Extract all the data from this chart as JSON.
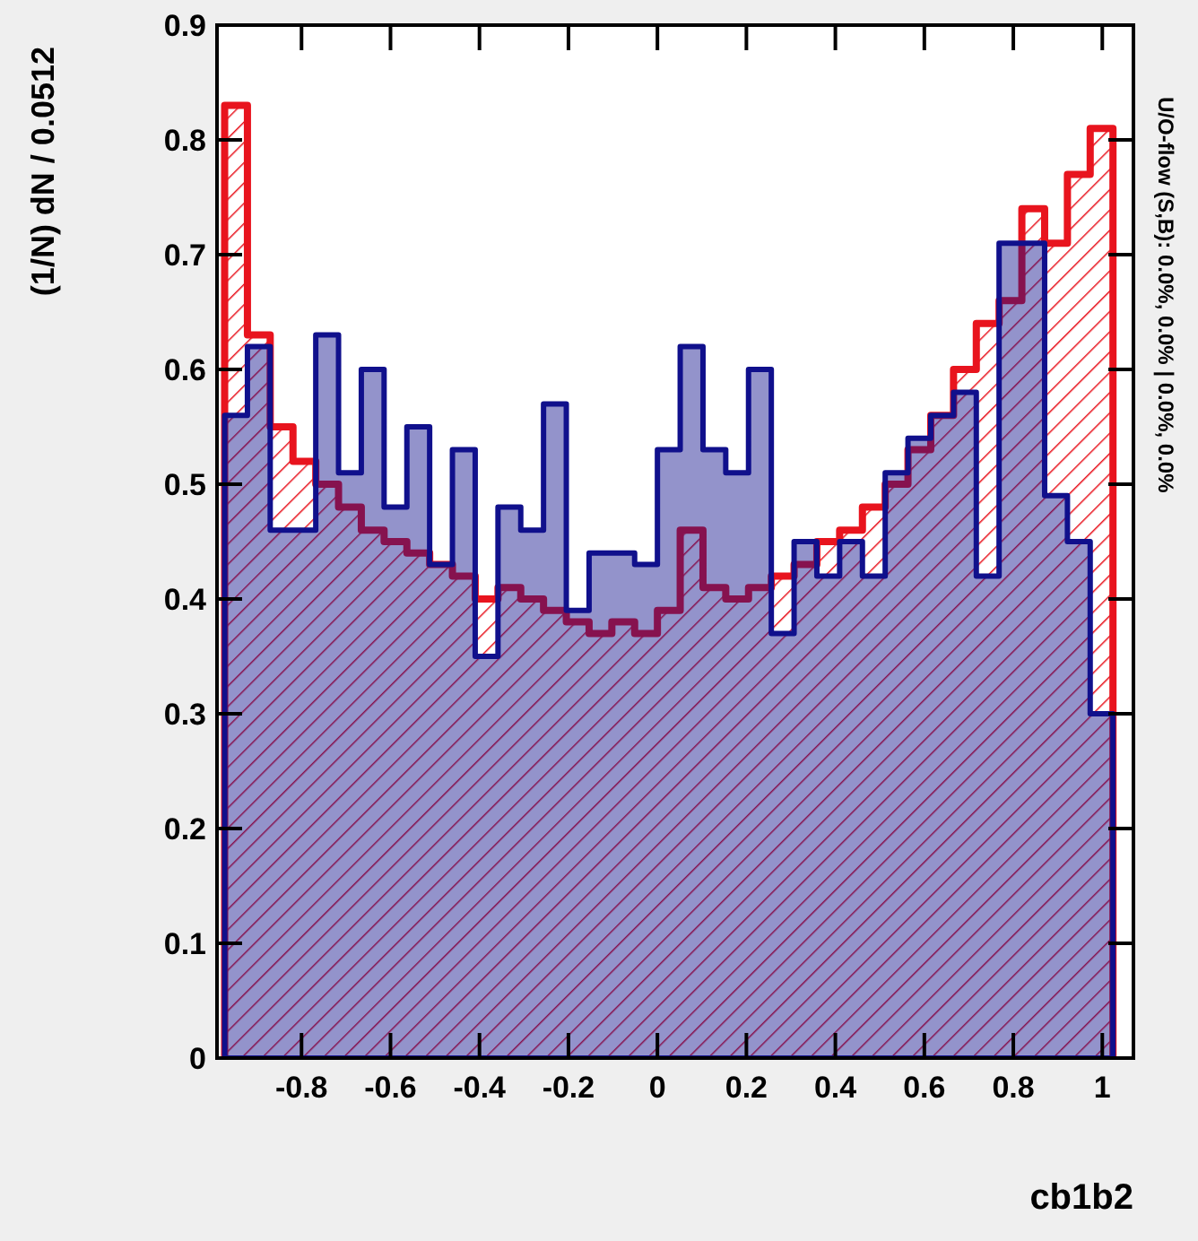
{
  "chart_data": {
    "type": "histogram",
    "xlabel": "cb1b2",
    "ylabel": "(1/N) dN / 0.0512",
    "annotations": [
      "U/O-flow (S,B): 0.0%, 0.0% | 0.0%, 0.0%"
    ],
    "bins": [
      -0.9728,
      -0.9216,
      -0.8704,
      -0.8192,
      -0.768,
      -0.7168,
      -0.6656,
      -0.6144,
      -0.5632,
      -0.512,
      -0.4608,
      -0.4096,
      -0.3584,
      -0.3072,
      -0.256,
      -0.2048,
      -0.1536,
      -0.1024,
      -0.0512,
      0,
      0.0512,
      0.1024,
      0.1536,
      0.2048,
      0.256,
      0.3072,
      0.3584,
      0.4096,
      0.4608,
      0.512,
      0.5632,
      0.6144,
      0.6656,
      0.7168,
      0.768,
      0.8192,
      0.8704,
      0.9216,
      0.9728,
      1.024
    ],
    "series": [
      {
        "color": "#10108c",
        "values": [
          0.56,
          0.62,
          0.46,
          0.46,
          0.63,
          0.51,
          0.6,
          0.48,
          0.55,
          0.43,
          0.53,
          0.35,
          0.48,
          0.46,
          0.57,
          0.39,
          0.44,
          0.44,
          0.43,
          0.53,
          0.62,
          0.53,
          0.51,
          0.6,
          0.37,
          0.45,
          0.42,
          0.45,
          0.42,
          0.51,
          0.54,
          0.56,
          0.58,
          0.42,
          0.71,
          0.71,
          0.49,
          0.45,
          0.3
        ]
      },
      {
        "color": "#e8141e",
        "values": [
          0.83,
          0.63,
          0.55,
          0.52,
          0.5,
          0.48,
          0.46,
          0.45,
          0.44,
          0.43,
          0.42,
          0.4,
          0.41,
          0.4,
          0.39,
          0.38,
          0.37,
          0.38,
          0.37,
          0.39,
          0.46,
          0.41,
          0.4,
          0.41,
          0.42,
          0.43,
          0.45,
          0.46,
          0.48,
          0.5,
          0.53,
          0.56,
          0.6,
          0.64,
          0.66,
          0.74,
          0.71,
          0.77,
          0.81
        ]
      }
    ],
    "xlim": [
      -0.99,
      1.07
    ],
    "ylim": [
      0,
      0.9
    ],
    "xticks": [
      -0.8,
      -0.6,
      -0.4,
      -0.2,
      0,
      0.2,
      0.4,
      0.6,
      0.8,
      1
    ],
    "yticks": [
      0,
      0.1,
      0.2,
      0.3,
      0.4,
      0.5,
      0.6,
      0.7,
      0.8,
      0.9
    ],
    "grid": false
  }
}
